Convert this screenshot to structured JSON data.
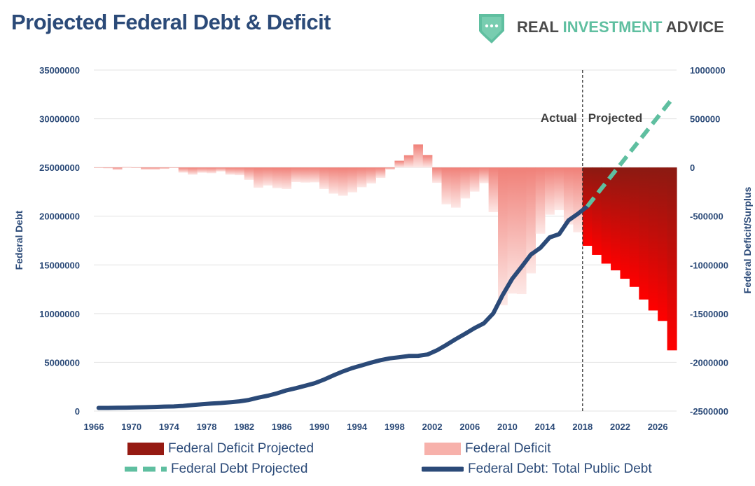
{
  "header": {
    "title": "Projected Federal Debt & Deficit",
    "logo": {
      "word1": "REAL",
      "word2": "INVESTMENT",
      "word3": "ADVICE",
      "icon": "shield-dots-icon"
    }
  },
  "colors": {
    "debt_line": "#2b4a78",
    "debt_projected": "#5fbfa0",
    "deficit_actual": "#f4a09a",
    "deficit_projected_dark": "#8b1a12",
    "deficit_projected_bright": "#ff0000",
    "axis_text": "#2b4a78"
  },
  "chart_data": {
    "type": "line+bar",
    "title": "Projected Federal Debt & Deficit",
    "left_axis": {
      "label": "Federal Debt",
      "ylim": [
        0,
        35000000
      ],
      "ticks": [
        "0",
        "5000000",
        "10000000",
        "15000000",
        "20000000",
        "25000000",
        "30000000",
        "35000000"
      ]
    },
    "right_axis": {
      "label": "Federal Deficit/Surplus",
      "ylim": [
        -2500000,
        1000000
      ],
      "ticks": [
        "-2500000",
        "-2000000",
        "-1500000",
        "-1000000",
        "-500000",
        "0",
        "500000",
        "1000000"
      ]
    },
    "x_ticks": [
      "1966",
      "1970",
      "1974",
      "1978",
      "1982",
      "1986",
      "1990",
      "1994",
      "1998",
      "2002",
      "2006",
      "2010",
      "2014",
      "2018",
      "2022",
      "2026"
    ],
    "x_range": [
      1966,
      2028
    ],
    "divider_year": 2018,
    "annotations": {
      "actual": "Actual",
      "projected": "Projected"
    },
    "deficit_actual": {
      "name": "Federal Deficit",
      "years": [
        1966,
        1967,
        1968,
        1969,
        1970,
        1971,
        1972,
        1973,
        1974,
        1975,
        1976,
        1977,
        1978,
        1979,
        1980,
        1981,
        1982,
        1983,
        1984,
        1985,
        1986,
        1987,
        1988,
        1989,
        1990,
        1991,
        1992,
        1993,
        1994,
        1995,
        1996,
        1997,
        1998,
        1999,
        2000,
        2001,
        2002,
        2003,
        2004,
        2005,
        2006,
        2007,
        2008,
        2009,
        2010,
        2011,
        2012,
        2013,
        2014,
        2015,
        2016,
        2017
      ],
      "values": [
        -4000,
        -9000,
        -25000,
        3000,
        -3000,
        -23000,
        -23000,
        -15000,
        -6000,
        -53000,
        -74000,
        -54000,
        -59000,
        -41000,
        -74000,
        -79000,
        -128000,
        -208000,
        -185000,
        -212000,
        -221000,
        -150000,
        -155000,
        -153000,
        -221000,
        -269000,
        -290000,
        -255000,
        -203000,
        -164000,
        -107000,
        -22000,
        69000,
        126000,
        236000,
        128000,
        -158000,
        -378000,
        -413000,
        -318000,
        -248000,
        -161000,
        -459000,
        -1413000,
        -1294000,
        -1300000,
        -1087000,
        -680000,
        -485000,
        -438000,
        -585000,
        -665000
      ]
    },
    "deficit_projected": {
      "name": "Federal Deficit Projected",
      "years": [
        2018,
        2019,
        2020,
        2021,
        2022,
        2023,
        2024,
        2025,
        2026,
        2027
      ],
      "values": [
        -804000,
        -897000,
        -987000,
        -1056000,
        -1142000,
        -1226000,
        -1355000,
        -1468000,
        -1575000,
        -1877000
      ]
    },
    "debt_actual": {
      "name": "Federal Debt: Total Public Debt",
      "years": [
        1966,
        1967,
        1968,
        1969,
        1970,
        1971,
        1972,
        1973,
        1974,
        1975,
        1976,
        1977,
        1978,
        1979,
        1980,
        1981,
        1982,
        1983,
        1984,
        1985,
        1986,
        1987,
        1988,
        1989,
        1990,
        1991,
        1992,
        1993,
        1994,
        1995,
        1996,
        1997,
        1998,
        1999,
        2000,
        2001,
        2002,
        2003,
        2004,
        2005,
        2006,
        2007,
        2008,
        2009,
        2010,
        2011,
        2012,
        2013,
        2014,
        2015,
        2016,
        2017,
        2018
      ],
      "values": [
        320000,
        326000,
        348000,
        354000,
        371000,
        398000,
        427000,
        458000,
        475000,
        533000,
        620000,
        699000,
        772000,
        827000,
        908000,
        998000,
        1142000,
        1377000,
        1572000,
        1823000,
        2125000,
        2350000,
        2602000,
        2857000,
        3233000,
        3665000,
        4065000,
        4411000,
        4693000,
        4974000,
        5225000,
        5413000,
        5526000,
        5656000,
        5674000,
        5807000,
        6228000,
        6783000,
        7379000,
        7933000,
        8507000,
        9008000,
        10025000,
        11910000,
        13562000,
        14790000,
        16066000,
        16738000,
        17824000,
        18151000,
        19573000,
        20245000,
        21000000
      ]
    },
    "debt_projected": {
      "name": "Federal Debt Projected",
      "years": [
        2018,
        2027
      ],
      "values": [
        21000000,
        32000000
      ]
    },
    "legend": {
      "deficit_projected": "Federal Deficit Projected",
      "deficit_actual": "Federal Deficit",
      "debt_projected": "Federal Debt Projected",
      "debt_actual": "Federal Debt: Total Public Debt"
    }
  }
}
